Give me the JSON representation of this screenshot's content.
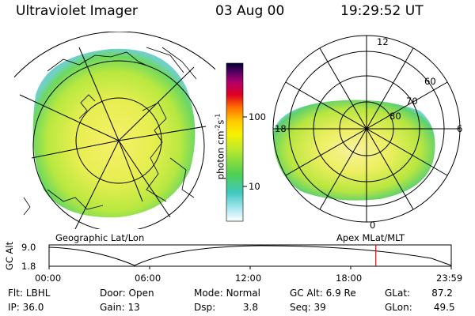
{
  "header": {
    "instrument": "Ultraviolet Imager",
    "date": "03 Aug 00",
    "time": "19:29:52 UT"
  },
  "left_panel": {
    "caption": "Geographic Lat/Lon"
  },
  "right_panel": {
    "caption": "Apex MLat/MLT",
    "mlt_labels": [
      "12",
      "18",
      "6",
      "0"
    ],
    "mlat_labels": [
      "60",
      "70",
      "80"
    ]
  },
  "colorbar": {
    "unit_prefix": "photon cm",
    "unit_exp1": "-2",
    "unit_s": "s",
    "unit_exp2": "-1",
    "ticks": [
      "100",
      "10"
    ],
    "scale": "log",
    "colors": [
      "#000033",
      "#5a0066",
      "#b0006a",
      "#e00020",
      "#ff7000",
      "#ffcc00",
      "#f8f000",
      "#b8e830",
      "#50d050",
      "#40c8c0",
      "#a0e8f0",
      "#ffffff"
    ]
  },
  "altitude_plot": {
    "ylabel": "GC Alt",
    "yticks": [
      "9.0",
      "1.8"
    ],
    "xticks": [
      "00:00",
      "06:00",
      "12:00",
      "18:00",
      "23:59"
    ],
    "current_time_hours": 19.5
  },
  "info": {
    "filter_label": "Flt:",
    "filter_value": "LBHL",
    "ip_label": "IP:",
    "ip_value": "36.0",
    "door_label": "Door:",
    "door_value": "Open",
    "gain_label": "Gain:",
    "gain_value": "13",
    "mode_label": "Mode:",
    "mode_value": "Normal",
    "dsp_label": "Dsp:",
    "dsp_value": "3.8",
    "gcalt_label": "GC Alt:",
    "gcalt_value": "6.9 Re",
    "seq_label": "Seq:",
    "seq_value": "39",
    "glat_label": "GLat:",
    "glat_value": "87.2",
    "glon_label": "GLon:",
    "glon_value": "49.5"
  }
}
